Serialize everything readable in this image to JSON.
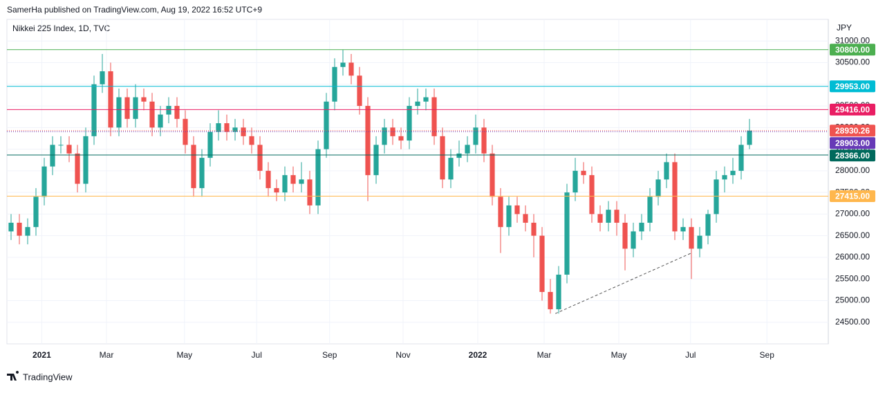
{
  "header": {
    "publisher": "SamerHa published on TradingView.com, Aug 19, 2022 16:52 UTC+9",
    "brand": "TradingView"
  },
  "chart_data": {
    "type": "candlestick",
    "title": "Nikkei 225 Index, 1D, TVC",
    "currency": "JPY",
    "up_color": "#26a69a",
    "down_color": "#ef5350",
    "grid": true,
    "open": [
      26600,
      26800,
      26500,
      26700,
      27400,
      28100,
      28600,
      28600,
      28400,
      27700,
      28800,
      30000,
      30300,
      29000,
      29700,
      29200,
      29700,
      29600,
      29000,
      29300,
      29500,
      29200,
      28600,
      27600,
      28300,
      28900,
      29100,
      28900,
      29000,
      28800,
      28600,
      28000,
      27600,
      27500,
      27900,
      27700,
      27800,
      27200,
      28500,
      29600,
      30400,
      30500,
      30200,
      29500,
      27900,
      28600,
      29000,
      28800,
      28700,
      29500,
      29600,
      29700,
      28800,
      27800,
      28300,
      28400,
      28600,
      29000,
      28400,
      27400,
      26700,
      27200,
      27000,
      26800,
      26500,
      25200,
      24800,
      25600,
      27500,
      28000,
      27900,
      27000,
      26800,
      27100,
      26800,
      26200,
      26600,
      26800,
      27400,
      27800,
      28200,
      26600,
      26700,
      26200,
      26500,
      27000,
      27800,
      27900,
      28000,
      28600
    ],
    "high": [
      27000,
      27000,
      26900,
      27600,
      28300,
      28800,
      28800,
      28800,
      28600,
      29000,
      30200,
      30700,
      30500,
      29900,
      29900,
      30000,
      29900,
      29800,
      29500,
      29700,
      29700,
      29400,
      28800,
      28500,
      29100,
      29400,
      29300,
      29200,
      29200,
      29000,
      28800,
      28200,
      27800,
      28100,
      28100,
      28200,
      28000,
      28700,
      29800,
      30600,
      30800,
      30700,
      30400,
      29700,
      28800,
      29200,
      29200,
      29000,
      29700,
      29900,
      29900,
      29900,
      29000,
      28500,
      28700,
      28800,
      29300,
      29200,
      28600,
      27600,
      27400,
      27400,
      27200,
      27000,
      26700,
      25500,
      25800,
      27700,
      28300,
      28200,
      28100,
      27200,
      27300,
      27300,
      27000,
      26800,
      27000,
      27600,
      28000,
      28400,
      28400,
      26900,
      26900,
      26700,
      27100,
      28000,
      28100,
      28300,
      28800,
      29200
    ],
    "low": [
      26400,
      26300,
      26300,
      26500,
      27200,
      27900,
      28400,
      28200,
      27500,
      27500,
      28600,
      29800,
      28800,
      28800,
      29000,
      29000,
      29400,
      28800,
      28800,
      29100,
      29000,
      28400,
      27400,
      27400,
      28100,
      28700,
      28700,
      28700,
      28600,
      28400,
      27800,
      27400,
      27300,
      27300,
      27500,
      27500,
      27000,
      27000,
      28300,
      29400,
      30200,
      30000,
      29300,
      27300,
      27700,
      28400,
      28600,
      28500,
      28500,
      29300,
      29400,
      28600,
      27600,
      27600,
      28100,
      28200,
      28400,
      28200,
      27200,
      26100,
      26500,
      26800,
      26600,
      26000,
      25000,
      24700,
      24700,
      25400,
      27300,
      27700,
      26800,
      26600,
      26600,
      26500,
      25700,
      26000,
      26400,
      26600,
      27200,
      27600,
      26400,
      26400,
      25500,
      26000,
      26300,
      26800,
      27500,
      27700,
      27800,
      28500
    ],
    "close": [
      26800,
      26500,
      26700,
      27400,
      28100,
      28600,
      28600,
      28400,
      27700,
      28800,
      30000,
      30300,
      29000,
      29700,
      29200,
      29700,
      29600,
      29000,
      29300,
      29500,
      29200,
      28600,
      27600,
      28300,
      28900,
      29100,
      28900,
      29000,
      28800,
      28600,
      28000,
      27600,
      27500,
      27900,
      27700,
      27800,
      27200,
      28500,
      29600,
      30400,
      30500,
      30200,
      29500,
      27900,
      28600,
      29000,
      28800,
      28700,
      29500,
      29600,
      29700,
      28800,
      27800,
      28300,
      28400,
      28600,
      29000,
      28400,
      27400,
      26700,
      27200,
      27000,
      26800,
      26500,
      25200,
      24800,
      25600,
      27500,
      28000,
      27900,
      27000,
      26800,
      27100,
      26800,
      26200,
      26600,
      26800,
      27400,
      27800,
      28200,
      26600,
      26700,
      26200,
      26500,
      27000,
      27800,
      27900,
      28000,
      28600,
      28930
    ],
    "xlim": [
      -0.5,
      98.5
    ],
    "xticks": [
      {
        "value": 3.7,
        "label": "2021"
      },
      {
        "value": 11.5,
        "label": "Mar"
      },
      {
        "value": 20.9,
        "label": "May"
      },
      {
        "value": 29.6,
        "label": "Jul"
      },
      {
        "value": 38.4,
        "label": "Sep"
      },
      {
        "value": 47.25,
        "label": "Nov"
      },
      {
        "value": 56.25,
        "label": "2022"
      },
      {
        "value": 64.25,
        "label": "Mar"
      },
      {
        "value": 73.25,
        "label": "May"
      },
      {
        "value": 81.9,
        "label": "Jul"
      },
      {
        "value": 91.1,
        "label": "Sep"
      }
    ],
    "ylim": [
      24000,
      31500
    ],
    "yticks": [
      {
        "value": 24500,
        "label": "24500.00"
      },
      {
        "value": 25000,
        "label": "25000.00"
      },
      {
        "value": 25500,
        "label": "25500.00"
      },
      {
        "value": 26000,
        "label": "26000.00"
      },
      {
        "value": 26500,
        "label": "26500.00"
      },
      {
        "value": 27000,
        "label": "27000.00"
      },
      {
        "value": 27500,
        "label": "27500.00"
      },
      {
        "value": 28000,
        "label": "28000.00"
      },
      {
        "value": 28500,
        "label": "28500.00"
      },
      {
        "value": 29000,
        "label": "29000.00"
      },
      {
        "value": 29500,
        "label": "29500.00"
      },
      {
        "value": 30000,
        "label": "30000.00"
      },
      {
        "value": 30500,
        "label": "30500.00"
      },
      {
        "value": 31000,
        "label": "31000.00"
      }
    ],
    "levels": [
      {
        "value": 30800,
        "label": "30800.00",
        "color": "#4caf50",
        "style": "solid"
      },
      {
        "value": 29953,
        "label": "29953.00",
        "color": "#00bcd4",
        "style": "solid"
      },
      {
        "value": 29416,
        "label": "29416.00",
        "color": "#e91e63",
        "style": "solid"
      },
      {
        "value": 28930.26,
        "label": "28930.26",
        "color": "#ef5350",
        "style": "dotted"
      },
      {
        "value": 28903,
        "label": "28903.00",
        "color": "#673ab7",
        "style": "dotted"
      },
      {
        "value": 28366,
        "label": "28366.00",
        "color": "#00695c",
        "style": "solid"
      },
      {
        "value": 27415,
        "label": "27415.00",
        "color": "#ffb74d",
        "style": "solid"
      }
    ],
    "trend_line": {
      "x": [
        65.6,
        82
      ],
      "y": [
        24700,
        26100
      ]
    }
  }
}
